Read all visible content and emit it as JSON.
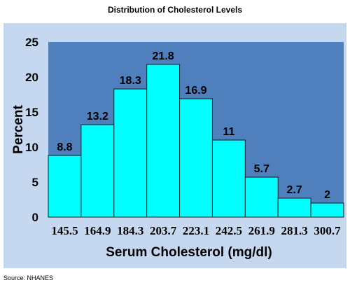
{
  "chart_data": {
    "type": "bar",
    "title": "Distribution of Cholesterol Levels",
    "xlabel": "Serum Cholesterol (mg/dl)",
    "ylabel": "Percent",
    "categories": [
      "145.5",
      "164.9",
      "184.3",
      "203.7",
      "223.1",
      "242.5",
      "261.9",
      "281.3",
      "300.7"
    ],
    "values": [
      8.8,
      13.2,
      18.3,
      21.8,
      16.9,
      11,
      5.7,
      2.7,
      2
    ],
    "value_labels": [
      "8.8",
      "13.2",
      "18.3",
      "21.8",
      "16.9",
      "11",
      "5.7",
      "2.7",
      "2"
    ],
    "yticks": [
      "0",
      "5",
      "10",
      "15",
      "20",
      "25"
    ],
    "ylim": [
      0,
      25
    ],
    "grid": false,
    "legend": "none",
    "colors": {
      "panel_bg": "#c5d8ef",
      "plot_bg": "#4f80bd",
      "bar_fill": "#00ffff",
      "bar_stroke": "#1a1a1a"
    }
  },
  "source": "Source: NHANES"
}
